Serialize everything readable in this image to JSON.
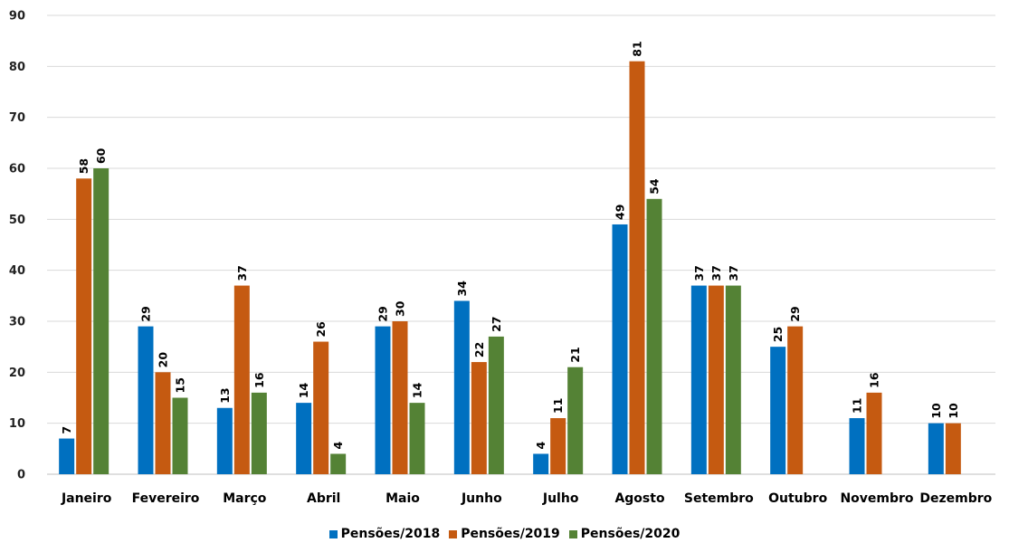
{
  "chart_data": {
    "type": "bar",
    "categories": [
      "Janeiro",
      "Fevereiro",
      "Março",
      "Abril",
      "Maio",
      "Junho",
      "Julho",
      "Agosto",
      "Setembro",
      "Outubro",
      "Novembro",
      "Dezembro"
    ],
    "series": [
      {
        "name": "Pensões/2018",
        "color": "#0070c0",
        "values": [
          7,
          29,
          13,
          14,
          29,
          34,
          4,
          49,
          37,
          25,
          11,
          10
        ]
      },
      {
        "name": "Pensões/2019",
        "color": "#c55a11",
        "values": [
          58,
          20,
          37,
          26,
          30,
          22,
          11,
          81,
          37,
          29,
          16,
          10
        ]
      },
      {
        "name": "Pensões/2020",
        "color": "#548235",
        "values": [
          60,
          15,
          16,
          4,
          14,
          27,
          21,
          54,
          37,
          null,
          null,
          null
        ]
      }
    ],
    "ylim": [
      0,
      90
    ],
    "yticks": [
      0,
      10,
      20,
      30,
      40,
      50,
      60,
      70,
      80,
      90
    ],
    "grid": true,
    "legend_position": "bottom",
    "data_labels": "rotated-vertical"
  }
}
